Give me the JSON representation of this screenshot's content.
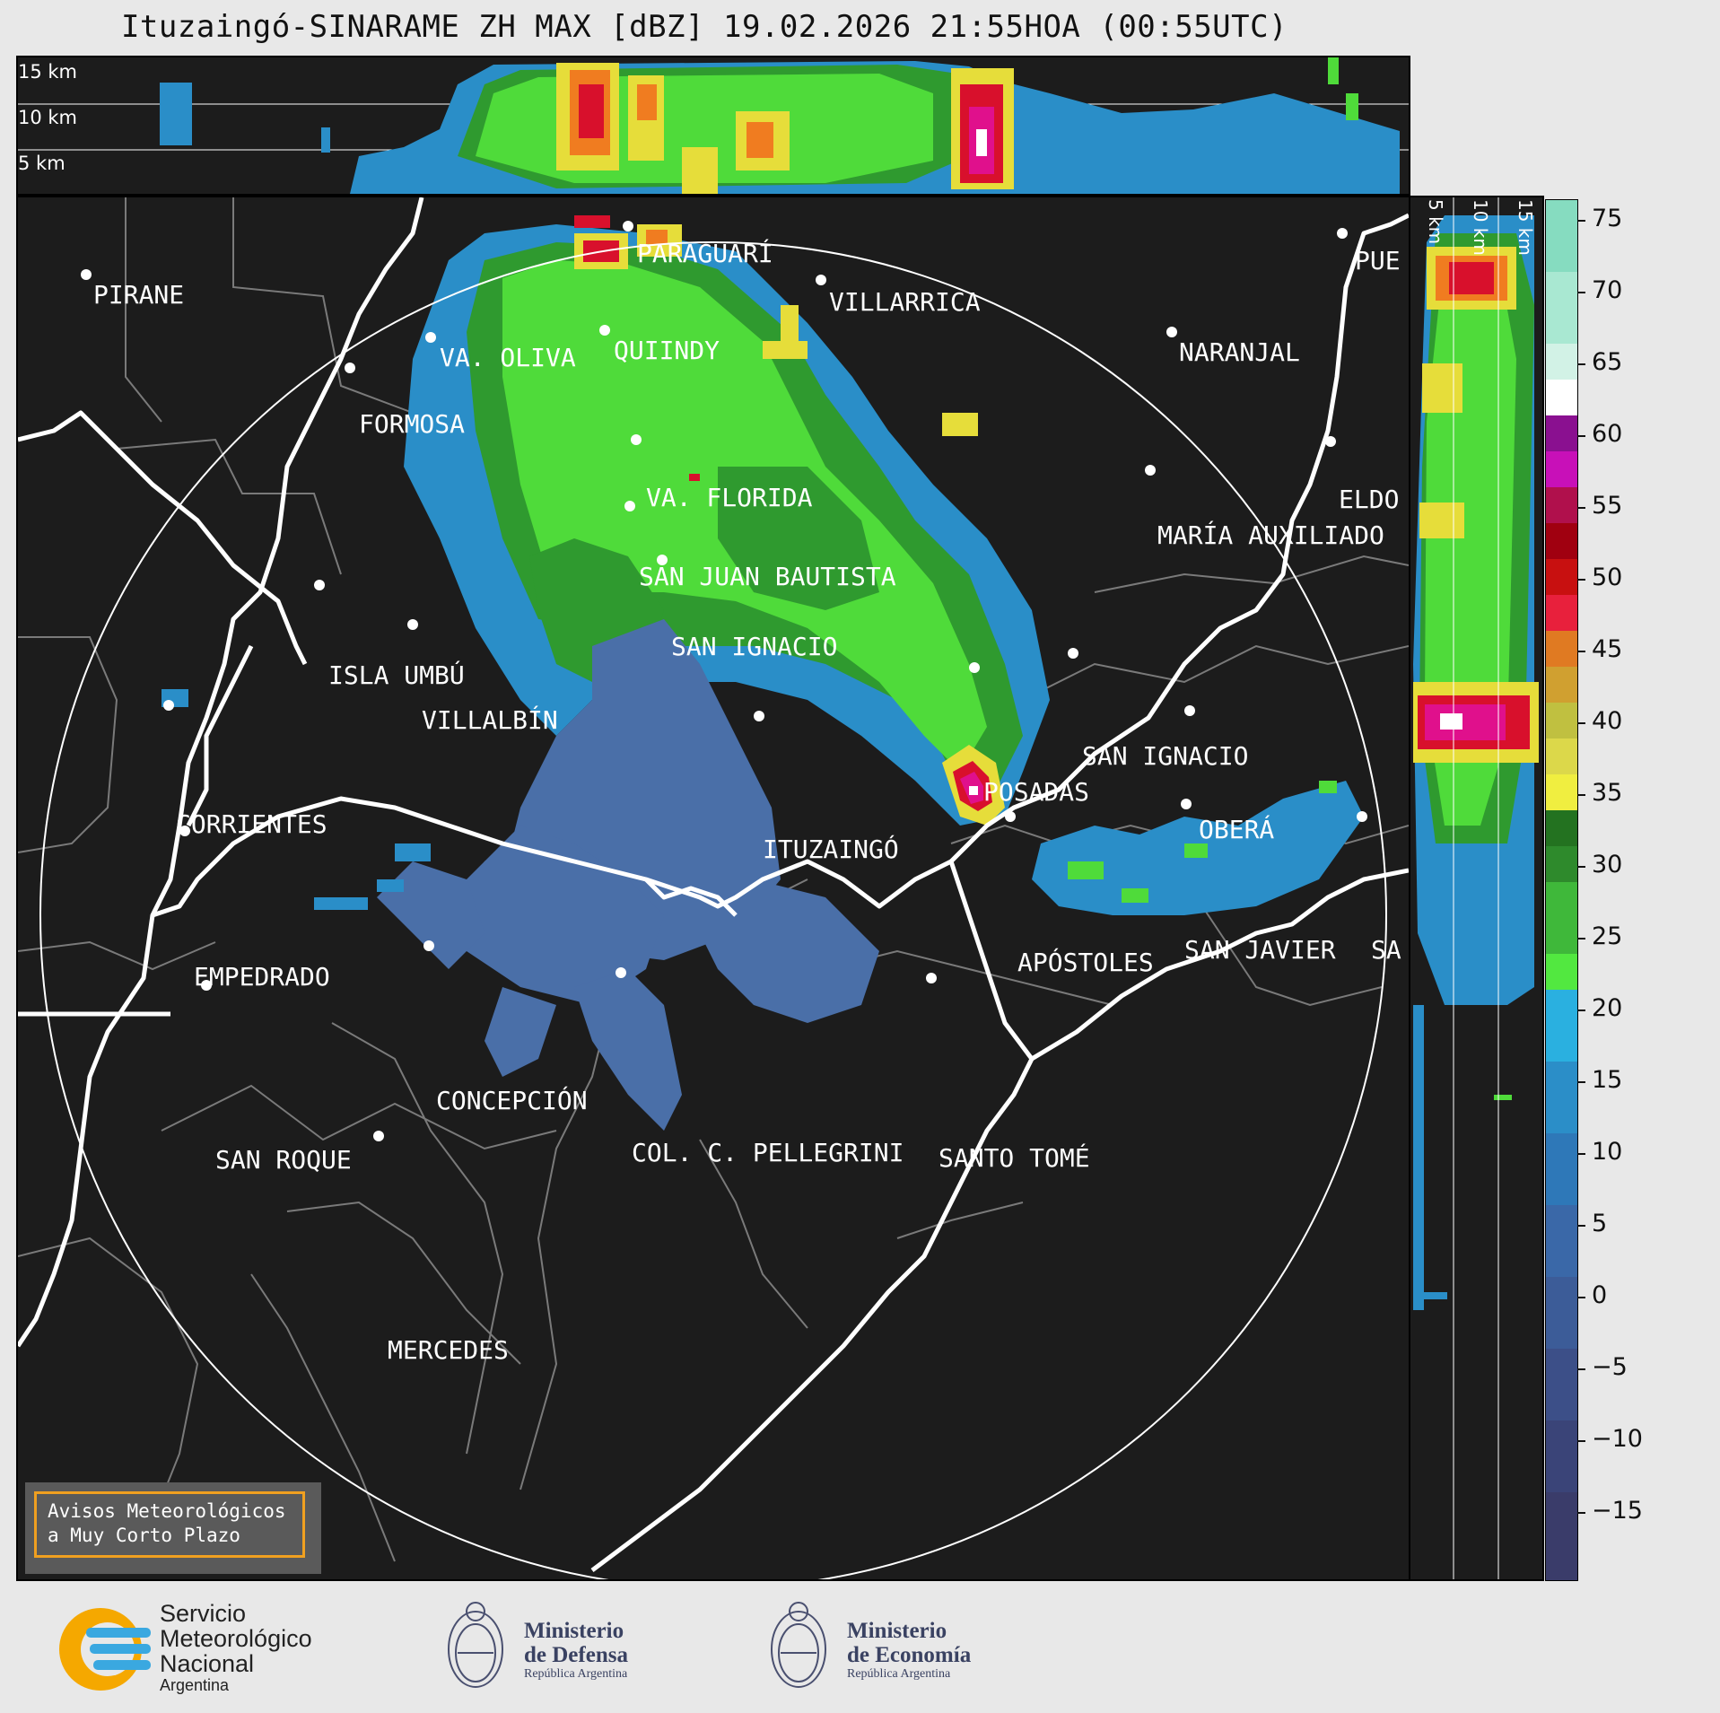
{
  "title": "Ituzaingó-SINARAME ZH MAX [dBZ] 19.02.2026 21:55HOA (00:55UTC)",
  "top_panel": {
    "heights": [
      "15 km",
      "10 km",
      "5 km"
    ]
  },
  "side_panel": {
    "heights": [
      "5 km",
      "10 km",
      "15 km"
    ]
  },
  "colorbar": {
    "ticks": [
      "75",
      "70",
      "65",
      "60",
      "55",
      "50",
      "45",
      "40",
      "35",
      "30",
      "25",
      "20",
      "15",
      "10",
      "5",
      "0",
      "−5",
      "−10",
      "−15"
    ]
  },
  "cities": [
    {
      "name": "PARAGUARÍ"
    },
    {
      "name": "VILLARRICA"
    },
    {
      "name": "PIRANE"
    },
    {
      "name": "VA. OLIVA"
    },
    {
      "name": "QUIINDY"
    },
    {
      "name": "FORMOSA"
    },
    {
      "name": "NARANJAL"
    },
    {
      "name": "PUE"
    },
    {
      "name": "VA. FLORIDA"
    },
    {
      "name": "ELDO"
    },
    {
      "name": "MARÍA AUXILIADO"
    },
    {
      "name": "SAN JUAN BAUTISTA"
    },
    {
      "name": "SAN IGNACIO"
    },
    {
      "name": "ISLA UMBÚ"
    },
    {
      "name": "VILLALBÍN"
    },
    {
      "name": "SAN IGNACIO"
    },
    {
      "name": "POSADAS"
    },
    {
      "name": "CORRIENTES"
    },
    {
      "name": "ITUZAINGÓ"
    },
    {
      "name": "OBERÁ"
    },
    {
      "name": "EMPEDRADO"
    },
    {
      "name": "APÓSTOLES"
    },
    {
      "name": "SAN JAVIER"
    },
    {
      "name": "SA"
    },
    {
      "name": "CONCEPCIÓN"
    },
    {
      "name": "SAN ROQUE"
    },
    {
      "name": "COL. C. PELLEGRINI"
    },
    {
      "name": "SANTO TOMÉ"
    },
    {
      "name": "MERCEDES"
    }
  ],
  "warning": {
    "line1": "Avisos Meteorológicos",
    "line2": "a Muy Corto Plazo"
  },
  "logos": {
    "smn": {
      "l1": "Servicio",
      "l2": "Meteorológico",
      "l3": "Nacional",
      "l4": "Argentina"
    },
    "defensa": {
      "l1": "Ministerio",
      "l2": "de Defensa",
      "l3": "República Argentina"
    },
    "economia": {
      "l1": "Ministerio",
      "l2": "de Economía",
      "l3": "República Argentina"
    }
  }
}
